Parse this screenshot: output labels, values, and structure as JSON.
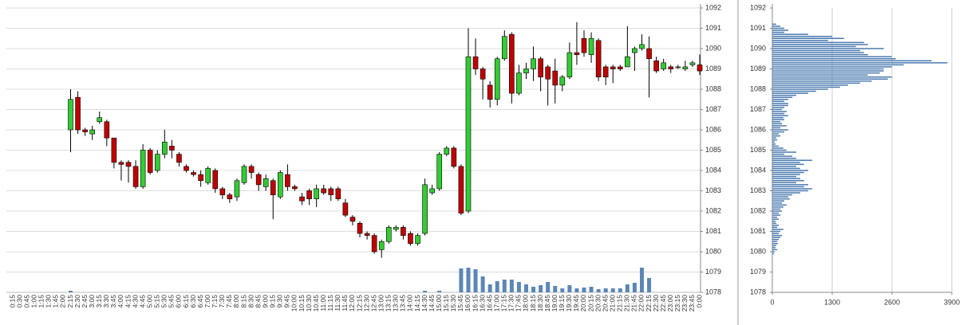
{
  "chart_data": [
    {
      "type": "candlestick",
      "categories": [
        "0:15",
        "0:30",
        "0:45",
        "1:00",
        "1:15",
        "1:30",
        "1:45",
        "2:00",
        "2:15",
        "2:30",
        "2:45",
        "3:00",
        "3:15",
        "3:30",
        "3:45",
        "4:00",
        "4:15",
        "4:30",
        "4:45",
        "5:00",
        "5:15",
        "5:30",
        "5:45",
        "6:00",
        "6:15",
        "6:30",
        "6:45",
        "7:00",
        "7:15",
        "7:30",
        "7:45",
        "8:00",
        "8:15",
        "8:30",
        "8:45",
        "9:00",
        "9:15",
        "9:30",
        "9:45",
        "10:00",
        "10:15",
        "10:30",
        "10:45",
        "11:00",
        "11:15",
        "11:30",
        "11:45",
        "12:00",
        "12:15",
        "12:30",
        "12:45",
        "13:00",
        "13:15",
        "13:30",
        "13:45",
        "14:00",
        "14:15",
        "14:30",
        "14:45",
        "15:00",
        "15:15",
        "15:30",
        "15:45",
        "16:00",
        "16:15",
        "16:30",
        "16:45",
        "17:00",
        "17:15",
        "17:30",
        "17:45",
        "18:00",
        "18:15",
        "18:30",
        "18:45",
        "19:00",
        "19:15",
        "19:30",
        "19:45",
        "20:00",
        "20:15",
        "20:30",
        "20:45",
        "21:00",
        "21:15",
        "21:30",
        "21:45",
        "22:00",
        "22:15",
        "22:30",
        "22:45",
        "23:00",
        "23:15",
        "23:30",
        "23:45",
        "0:00"
      ],
      "open": [
        null,
        null,
        null,
        null,
        null,
        null,
        null,
        null,
        1086,
        1087.6,
        1086,
        1085.8,
        1086.4,
        1086.4,
        1085.6,
        1084.4,
        1084.4,
        1084.2,
        1083.2,
        1085,
        1084,
        1084.8,
        1085.2,
        1084.8,
        1084.2,
        1083.9,
        1083.8,
        1083.4,
        1084,
        1083.1,
        1082.8,
        1082.7,
        1083.4,
        1084.2,
        1083.8,
        1083.2,
        1083.5,
        1082.7,
        1083.8,
        1083.2,
        1082.7,
        1083,
        1082.6,
        1083.1,
        1083.1,
        1083.1,
        1082.4,
        1081.7,
        1081.4,
        1080.9,
        1080.8,
        1080.1,
        1080.5,
        1081.1,
        1081.2,
        1080.9,
        1080.4,
        1080.9,
        1082.9,
        1083.1,
        1084.8,
        1085.1,
        1084.2,
        1082,
        1089.6,
        1089,
        1088.2,
        1087.5,
        1089.5,
        1090.7,
        1087.8,
        1088.8,
        1089,
        1089.5,
        1089.1,
        1088.9,
        1088.2,
        1088.6,
        1089.8,
        1090.5,
        1089.7,
        1090.4,
        1089.1,
        1089.1,
        1089.1,
        1089.1,
        1089.8,
        1090,
        1090,
        1089.4,
        1089,
        1089.1,
        1089.1,
        1089,
        1089.2,
        1089.2
      ],
      "high": [
        null,
        null,
        null,
        null,
        null,
        null,
        null,
        null,
        1088,
        1087.9,
        1086.1,
        1086.2,
        1086.9,
        1086.5,
        1085.6,
        1084.5,
        1084.5,
        1084.5,
        1085.3,
        1085.1,
        1085,
        1086,
        1085.5,
        1084.9,
        1084.3,
        1084,
        1084,
        1084.2,
        1084.1,
        1083.2,
        1082.9,
        1083.6,
        1084.3,
        1084.3,
        1083.9,
        1083.8,
        1083.6,
        1084,
        1084.3,
        1083.3,
        1082.9,
        1083.1,
        1083.3,
        1083.3,
        1083.2,
        1083.2,
        1082.6,
        1081.8,
        1081.5,
        1081,
        1080.9,
        1080.6,
        1081.3,
        1081.3,
        1081.3,
        1081,
        1080.9,
        1083.6,
        1083.3,
        1084.9,
        1085.2,
        1085.2,
        1084.3,
        1091,
        1090.5,
        1089.1,
        1088.4,
        1089.6,
        1090.9,
        1090.8,
        1089.2,
        1089.3,
        1090.1,
        1089.6,
        1089.2,
        1089.5,
        1088.7,
        1090.3,
        1091.3,
        1090.9,
        1090.8,
        1090.5,
        1089.2,
        1089.2,
        1089.2,
        1091.1,
        1090.1,
        1090.7,
        1090.6,
        1089.6,
        1089.5,
        1089.2,
        1089.2,
        1089.4,
        1089.4,
        1089.7
      ],
      "low": [
        null,
        null,
        null,
        null,
        null,
        null,
        null,
        null,
        1084.9,
        1085.8,
        1085.7,
        1085.5,
        1086.3,
        1085.2,
        1084.1,
        1083.5,
        1083.4,
        1083.1,
        1083.1,
        1083.8,
        1083.9,
        1084.6,
        1084.6,
        1084.2,
        1083.9,
        1083.7,
        1083.2,
        1083.3,
        1082.9,
        1082.6,
        1082.4,
        1082.5,
        1083.3,
        1083.6,
        1083,
        1083,
        1081.6,
        1082.6,
        1083,
        1083,
        1082.3,
        1082.3,
        1082.2,
        1082.8,
        1082.5,
        1082.5,
        1081.7,
        1081.3,
        1080.7,
        1080.6,
        1079.9,
        1079.7,
        1080.4,
        1081,
        1080.6,
        1080.3,
        1080.3,
        1080.8,
        1082.8,
        1083,
        1084.7,
        1084.1,
        1081.8,
        1081.9,
        1088.7,
        1087.5,
        1087.1,
        1087.2,
        1089.4,
        1087.3,
        1087.7,
        1088.5,
        1088.4,
        1087.9,
        1087.2,
        1087.3,
        1087.9,
        1088.5,
        1089.2,
        1089.6,
        1089.3,
        1088.4,
        1088.2,
        1088.3,
        1088.9,
        1089.1,
        1088.9,
        1089.9,
        1087.6,
        1088.8,
        1088.9,
        1088.8,
        1089,
        1088.9,
        1089.1,
        1088.7
      ],
      "close": [
        null,
        null,
        null,
        null,
        null,
        null,
        null,
        null,
        1087.5,
        1086,
        1085.9,
        1086,
        1086.6,
        1085.6,
        1084.4,
        1084.3,
        1084.2,
        1083.2,
        1085,
        1083.9,
        1084.8,
        1085.4,
        1085,
        1084.4,
        1084,
        1083.8,
        1083.5,
        1084.1,
        1083.1,
        1082.8,
        1082.6,
        1083.5,
        1084.2,
        1083.9,
        1083.3,
        1083.6,
        1082.8,
        1083.9,
        1083.2,
        1083.1,
        1082.5,
        1082.6,
        1083.1,
        1082.9,
        1082.8,
        1082.6,
        1081.8,
        1081.5,
        1080.9,
        1080.8,
        1080,
        1080.5,
        1081.2,
        1081.2,
        1080.8,
        1080.4,
        1080.8,
        1083.3,
        1083.1,
        1084.8,
        1085.1,
        1084.2,
        1081.9,
        1089.6,
        1089,
        1088.5,
        1087.5,
        1089.5,
        1090.6,
        1087.8,
        1088.8,
        1089,
        1089.5,
        1088.6,
        1088.5,
        1088.2,
        1088.6,
        1089.8,
        1089.7,
        1089.8,
        1090.5,
        1088.6,
        1088.6,
        1089,
        1089,
        1089.6,
        1090,
        1090.2,
        1089.5,
        1088.9,
        1089.3,
        1089,
        1089.1,
        1089.1,
        1089.3,
        1088.9
      ],
      "volume": [
        null,
        null,
        null,
        null,
        null,
        null,
        null,
        null,
        2,
        0,
        0,
        0,
        0,
        0,
        0,
        0,
        0,
        0,
        0,
        0,
        0,
        0,
        0,
        0,
        0,
        0,
        0,
        0,
        0,
        0,
        0,
        0,
        0,
        0,
        0,
        0,
        0,
        0,
        0,
        0,
        0,
        0,
        0,
        0,
        0,
        0,
        0,
        0,
        0,
        0,
        0,
        0,
        0,
        0,
        0,
        0,
        0,
        2,
        0,
        2,
        0,
        0,
        30,
        31,
        29,
        20,
        10,
        14,
        16,
        16,
        13,
        10,
        7,
        9,
        13,
        8,
        5,
        9,
        5,
        6,
        7,
        4,
        5,
        5,
        5,
        10,
        12,
        31,
        18,
        0,
        0,
        0,
        0,
        0,
        0,
        0
      ],
      "up_color": "#33cc33",
      "down_color": "#c00000",
      "volume_color": "#5b86b5",
      "ylim": [
        1078,
        1092
      ],
      "yticks": [
        1078,
        1079,
        1080,
        1081,
        1082,
        1083,
        1084,
        1085,
        1086,
        1087,
        1088,
        1089,
        1090,
        1091,
        1092
      ],
      "grid": true
    },
    {
      "type": "barh",
      "y": [
        1079.9,
        1080,
        1080.1,
        1080.2,
        1080.3,
        1080.4,
        1080.5,
        1080.6,
        1080.7,
        1080.8,
        1080.9,
        1081,
        1081.1,
        1081.2,
        1081.3,
        1081.4,
        1081.5,
        1081.6,
        1081.7,
        1081.8,
        1081.9,
        1082,
        1082.1,
        1082.2,
        1082.3,
        1082.4,
        1082.5,
        1082.6,
        1082.7,
        1082.8,
        1082.9,
        1083,
        1083.1,
        1083.2,
        1083.3,
        1083.4,
        1083.5,
        1083.6,
        1083.7,
        1083.8,
        1083.9,
        1084,
        1084.1,
        1084.2,
        1084.3,
        1084.4,
        1084.5,
        1084.6,
        1084.7,
        1084.8,
        1084.9,
        1085,
        1085.1,
        1085.2,
        1085.3,
        1085.4,
        1085.5,
        1085.6,
        1085.7,
        1085.8,
        1085.9,
        1086,
        1086.1,
        1086.2,
        1086.3,
        1086.4,
        1086.5,
        1086.6,
        1086.7,
        1086.8,
        1086.9,
        1087,
        1087.1,
        1087.2,
        1087.3,
        1087.4,
        1087.5,
        1087.6,
        1087.7,
        1087.8,
        1087.9,
        1088,
        1088.1,
        1088.2,
        1088.3,
        1088.4,
        1088.5,
        1088.6,
        1088.7,
        1088.8,
        1088.9,
        1089,
        1089.1,
        1089.2,
        1089.3,
        1089.4,
        1089.5,
        1089.6,
        1089.7,
        1089.8,
        1089.9,
        1090,
        1090.1,
        1090.2,
        1090.3,
        1090.4,
        1090.5,
        1090.6,
        1090.7,
        1090.8,
        1090.9,
        1091,
        1091.1,
        1091.2
      ],
      "values": [
        35,
        50,
        105,
        70,
        85,
        120,
        105,
        140,
        175,
        210,
        140,
        175,
        240,
        105,
        140,
        85,
        70,
        140,
        105,
        175,
        140,
        210,
        175,
        240,
        310,
        210,
        260,
        380,
        345,
        435,
        605,
        780,
        865,
        690,
        780,
        520,
        690,
        605,
        520,
        605,
        690,
        780,
        605,
        520,
        690,
        605,
        865,
        520,
        435,
        260,
        520,
        310,
        240,
        140,
        70,
        50,
        105,
        85,
        175,
        140,
        260,
        345,
        175,
        310,
        210,
        175,
        260,
        240,
        345,
        260,
        310,
        210,
        260,
        345,
        345,
        260,
        345,
        435,
        520,
        780,
        950,
        1210,
        1470,
        1645,
        1905,
        2160,
        2510,
        2595,
        2075,
        2335,
        2420,
        2420,
        2595,
        2855,
        3805,
        3460,
        2680,
        2595,
        2075,
        1990,
        1905,
        2420,
        1815,
        2075,
        1990,
        1210,
        1555,
        1300,
        780,
        260,
        345,
        260,
        175,
        85
      ],
      "color": "#4a7ab0",
      "xlim": [
        0,
        3900
      ],
      "xticks": [
        0,
        1300,
        2600,
        3900
      ],
      "ylim": [
        1078,
        1092
      ],
      "yticks": [
        1078,
        1079,
        1080,
        1081,
        1082,
        1083,
        1084,
        1085,
        1086,
        1087,
        1088,
        1089,
        1090,
        1091,
        1092
      ],
      "grid": true
    }
  ]
}
